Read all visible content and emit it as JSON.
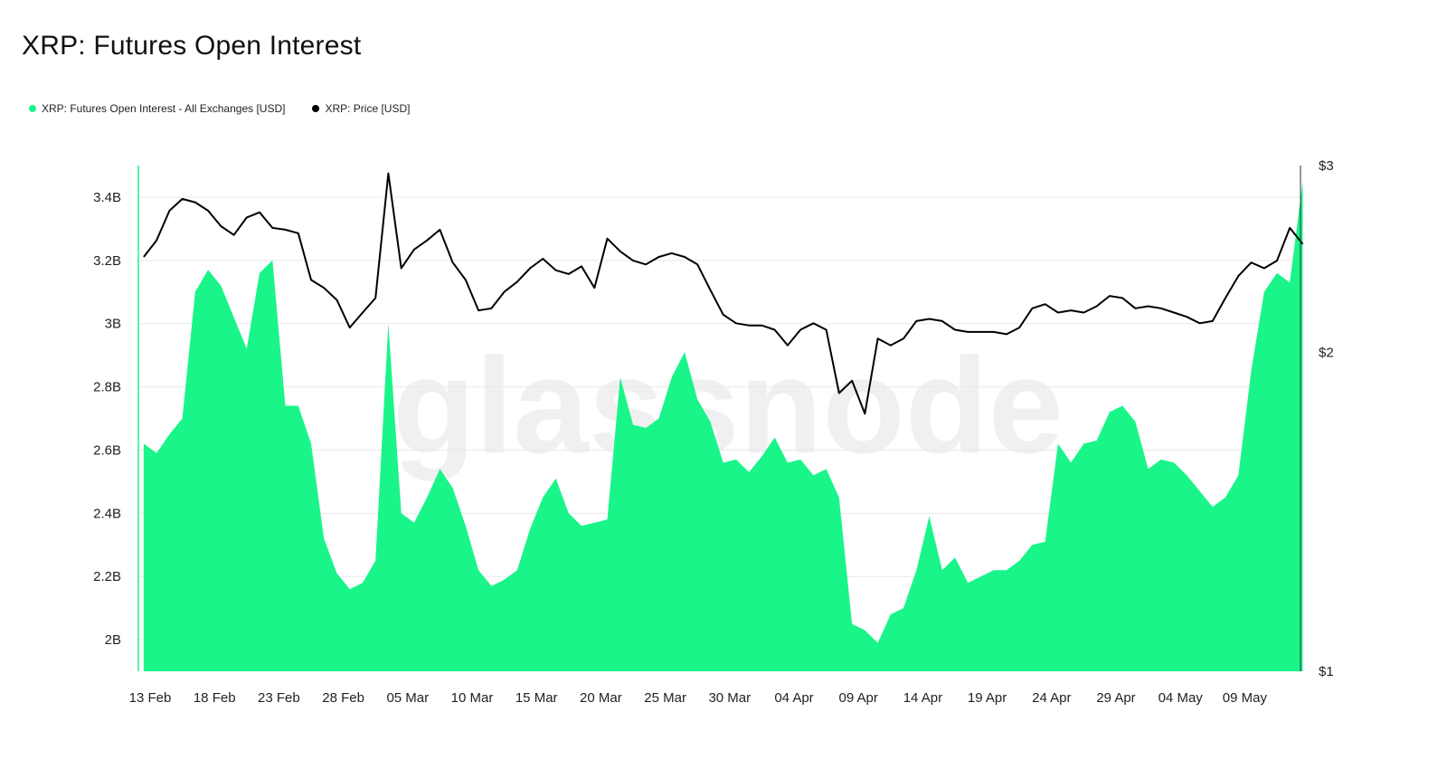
{
  "title": "XRP: Futures Open Interest",
  "legend": [
    {
      "label": "XRP: Futures Open Interest - All Exchanges [USD]",
      "color": "#1af58a"
    },
    {
      "label": "XRP: Price [USD]",
      "color": "#000000"
    }
  ],
  "watermark": "glassnode",
  "chart_data": {
    "type": "area",
    "x_ticks": [
      "13 Feb",
      "18 Feb",
      "23 Feb",
      "28 Feb",
      "05 Mar",
      "10 Mar",
      "15 Mar",
      "20 Mar",
      "25 Mar",
      "30 Mar",
      "04 Apr",
      "09 Apr",
      "14 Apr",
      "19 Apr",
      "24 Apr",
      "29 Apr",
      "04 May",
      "09 May"
    ],
    "y_left_ticks": [
      "2B",
      "2.2B",
      "2.4B",
      "2.6B",
      "2.8B",
      "3B",
      "3.2B",
      "3.4B"
    ],
    "y_left_values": [
      2.0,
      2.2,
      2.4,
      2.6,
      2.8,
      3.0,
      3.2,
      3.4
    ],
    "y_right_ticks": [
      "$1",
      "$2",
      "$3"
    ],
    "y_right_values": [
      1,
      2,
      3
    ],
    "y_left_range": [
      1.9,
      3.5
    ],
    "y_right_scale": "log",
    "y_right_range": [
      1,
      3
    ],
    "grid": true,
    "series": [
      {
        "name": "XRP: Futures Open Interest - All Exchanges [USD]",
        "axis": "left",
        "unit": "B USD",
        "color": "#1af58a",
        "points": [
          [
            "2025-02-12",
            2.62
          ],
          [
            "2025-02-13",
            2.59
          ],
          [
            "2025-02-14",
            2.65
          ],
          [
            "2025-02-15",
            2.7
          ],
          [
            "2025-02-16",
            3.1
          ],
          [
            "2025-02-17",
            3.17
          ],
          [
            "2025-02-18",
            3.12
          ],
          [
            "2025-02-19",
            3.02
          ],
          [
            "2025-02-20",
            2.92
          ],
          [
            "2025-02-21",
            3.16
          ],
          [
            "2025-02-22",
            3.2
          ],
          [
            "2025-02-23",
            2.74
          ],
          [
            "2025-02-24",
            2.74
          ],
          [
            "2025-02-25",
            2.62
          ],
          [
            "2025-02-26",
            2.32
          ],
          [
            "2025-02-27",
            2.21
          ],
          [
            "2025-02-28",
            2.16
          ],
          [
            "2025-03-01",
            2.18
          ],
          [
            "2025-03-02",
            2.25
          ],
          [
            "2025-03-03",
            3.0
          ],
          [
            "2025-03-04",
            2.4
          ],
          [
            "2025-03-05",
            2.37
          ],
          [
            "2025-03-06",
            2.45
          ],
          [
            "2025-03-07",
            2.54
          ],
          [
            "2025-03-08",
            2.48
          ],
          [
            "2025-03-09",
            2.36
          ],
          [
            "2025-03-10",
            2.22
          ],
          [
            "2025-03-11",
            2.17
          ],
          [
            "2025-03-12",
            2.19
          ],
          [
            "2025-03-13",
            2.22
          ],
          [
            "2025-03-14",
            2.35
          ],
          [
            "2025-03-15",
            2.45
          ],
          [
            "2025-03-16",
            2.51
          ],
          [
            "2025-03-17",
            2.4
          ],
          [
            "2025-03-18",
            2.36
          ],
          [
            "2025-03-19",
            2.37
          ],
          [
            "2025-03-20",
            2.38
          ],
          [
            "2025-03-21",
            2.83
          ],
          [
            "2025-03-22",
            2.68
          ],
          [
            "2025-03-23",
            2.67
          ],
          [
            "2025-03-24",
            2.7
          ],
          [
            "2025-03-25",
            2.83
          ],
          [
            "2025-03-26",
            2.91
          ],
          [
            "2025-03-27",
            2.76
          ],
          [
            "2025-03-28",
            2.69
          ],
          [
            "2025-03-29",
            2.56
          ],
          [
            "2025-03-30",
            2.57
          ],
          [
            "2025-03-31",
            2.53
          ],
          [
            "2025-04-01",
            2.58
          ],
          [
            "2025-04-02",
            2.64
          ],
          [
            "2025-04-03",
            2.56
          ],
          [
            "2025-04-04",
            2.57
          ],
          [
            "2025-04-05",
            2.52
          ],
          [
            "2025-04-06",
            2.54
          ],
          [
            "2025-04-07",
            2.45
          ],
          [
            "2025-04-08",
            2.05
          ],
          [
            "2025-04-09",
            2.03
          ],
          [
            "2025-04-10",
            1.99
          ],
          [
            "2025-04-11",
            2.08
          ],
          [
            "2025-04-12",
            2.1
          ],
          [
            "2025-04-13",
            2.22
          ],
          [
            "2025-04-14",
            2.39
          ],
          [
            "2025-04-15",
            2.22
          ],
          [
            "2025-04-16",
            2.26
          ],
          [
            "2025-04-17",
            2.18
          ],
          [
            "2025-04-18",
            2.2
          ],
          [
            "2025-04-19",
            2.22
          ],
          [
            "2025-04-20",
            2.22
          ],
          [
            "2025-04-21",
            2.25
          ],
          [
            "2025-04-22",
            2.3
          ],
          [
            "2025-04-23",
            2.31
          ],
          [
            "2025-04-24",
            2.62
          ],
          [
            "2025-04-25",
            2.56
          ],
          [
            "2025-04-26",
            2.62
          ],
          [
            "2025-04-27",
            2.63
          ],
          [
            "2025-04-28",
            2.72
          ],
          [
            "2025-04-29",
            2.74
          ],
          [
            "2025-04-30",
            2.69
          ],
          [
            "2025-05-01",
            2.54
          ],
          [
            "2025-05-02",
            2.57
          ],
          [
            "2025-05-03",
            2.56
          ],
          [
            "2025-05-04",
            2.52
          ],
          [
            "2025-05-05",
            2.47
          ],
          [
            "2025-05-06",
            2.42
          ],
          [
            "2025-05-07",
            2.45
          ],
          [
            "2025-05-08",
            2.52
          ],
          [
            "2025-05-09",
            2.85
          ],
          [
            "2025-05-10",
            3.1
          ],
          [
            "2025-05-11",
            3.16
          ],
          [
            "2025-05-12",
            3.13
          ],
          [
            "2025-05-13",
            3.45
          ]
        ]
      },
      {
        "name": "XRP: Price [USD]",
        "axis": "right",
        "unit": "USD",
        "color": "#000000",
        "points": [
          [
            "2025-02-12",
            2.46
          ],
          [
            "2025-02-13",
            2.55
          ],
          [
            "2025-02-14",
            2.72
          ],
          [
            "2025-02-15",
            2.79
          ],
          [
            "2025-02-16",
            2.77
          ],
          [
            "2025-02-17",
            2.72
          ],
          [
            "2025-02-18",
            2.63
          ],
          [
            "2025-02-19",
            2.58
          ],
          [
            "2025-02-20",
            2.68
          ],
          [
            "2025-02-21",
            2.71
          ],
          [
            "2025-02-22",
            2.62
          ],
          [
            "2025-02-23",
            2.61
          ],
          [
            "2025-02-24",
            2.59
          ],
          [
            "2025-02-25",
            2.34
          ],
          [
            "2025-02-26",
            2.3
          ],
          [
            "2025-02-27",
            2.24
          ],
          [
            "2025-02-28",
            2.11
          ],
          [
            "2025-03-01",
            2.18
          ],
          [
            "2025-03-02",
            2.25
          ],
          [
            "2025-03-03",
            2.95
          ],
          [
            "2025-03-04",
            2.4
          ],
          [
            "2025-03-05",
            2.5
          ],
          [
            "2025-03-06",
            2.55
          ],
          [
            "2025-03-07",
            2.61
          ],
          [
            "2025-03-08",
            2.43
          ],
          [
            "2025-03-09",
            2.34
          ],
          [
            "2025-03-10",
            2.19
          ],
          [
            "2025-03-11",
            2.2
          ],
          [
            "2025-03-12",
            2.28
          ],
          [
            "2025-03-13",
            2.33
          ],
          [
            "2025-03-14",
            2.4
          ],
          [
            "2025-03-15",
            2.45
          ],
          [
            "2025-03-16",
            2.39
          ],
          [
            "2025-03-17",
            2.37
          ],
          [
            "2025-03-18",
            2.41
          ],
          [
            "2025-03-19",
            2.3
          ],
          [
            "2025-03-20",
            2.56
          ],
          [
            "2025-03-21",
            2.49
          ],
          [
            "2025-03-22",
            2.44
          ],
          [
            "2025-03-23",
            2.42
          ],
          [
            "2025-03-24",
            2.46
          ],
          [
            "2025-03-25",
            2.48
          ],
          [
            "2025-03-26",
            2.46
          ],
          [
            "2025-03-27",
            2.42
          ],
          [
            "2025-03-28",
            2.29
          ],
          [
            "2025-03-29",
            2.17
          ],
          [
            "2025-03-30",
            2.13
          ],
          [
            "2025-03-31",
            2.12
          ],
          [
            "2025-04-01",
            2.12
          ],
          [
            "2025-04-02",
            2.1
          ],
          [
            "2025-04-03",
            2.03
          ],
          [
            "2025-04-04",
            2.1
          ],
          [
            "2025-04-05",
            2.13
          ],
          [
            "2025-04-06",
            2.1
          ],
          [
            "2025-04-07",
            1.83
          ],
          [
            "2025-04-08",
            1.88
          ],
          [
            "2025-04-09",
            1.75
          ],
          [
            "2025-04-10",
            2.06
          ],
          [
            "2025-04-11",
            2.03
          ],
          [
            "2025-04-12",
            2.06
          ],
          [
            "2025-04-13",
            2.14
          ],
          [
            "2025-04-14",
            2.15
          ],
          [
            "2025-04-15",
            2.14
          ],
          [
            "2025-04-16",
            2.1
          ],
          [
            "2025-04-17",
            2.09
          ],
          [
            "2025-04-18",
            2.09
          ],
          [
            "2025-04-19",
            2.09
          ],
          [
            "2025-04-20",
            2.08
          ],
          [
            "2025-04-21",
            2.11
          ],
          [
            "2025-04-22",
            2.2
          ],
          [
            "2025-04-23",
            2.22
          ],
          [
            "2025-04-24",
            2.18
          ],
          [
            "2025-04-25",
            2.19
          ],
          [
            "2025-04-26",
            2.18
          ],
          [
            "2025-04-27",
            2.21
          ],
          [
            "2025-04-28",
            2.26
          ],
          [
            "2025-04-29",
            2.25
          ],
          [
            "2025-04-30",
            2.2
          ],
          [
            "2025-05-01",
            2.21
          ],
          [
            "2025-05-02",
            2.2
          ],
          [
            "2025-05-03",
            2.18
          ],
          [
            "2025-05-04",
            2.16
          ],
          [
            "2025-05-05",
            2.13
          ],
          [
            "2025-05-06",
            2.14
          ],
          [
            "2025-05-07",
            2.25
          ],
          [
            "2025-05-08",
            2.36
          ],
          [
            "2025-05-09",
            2.43
          ],
          [
            "2025-05-10",
            2.4
          ],
          [
            "2025-05-11",
            2.44
          ],
          [
            "2025-05-12",
            2.62
          ],
          [
            "2025-05-13",
            2.53
          ]
        ]
      }
    ]
  }
}
